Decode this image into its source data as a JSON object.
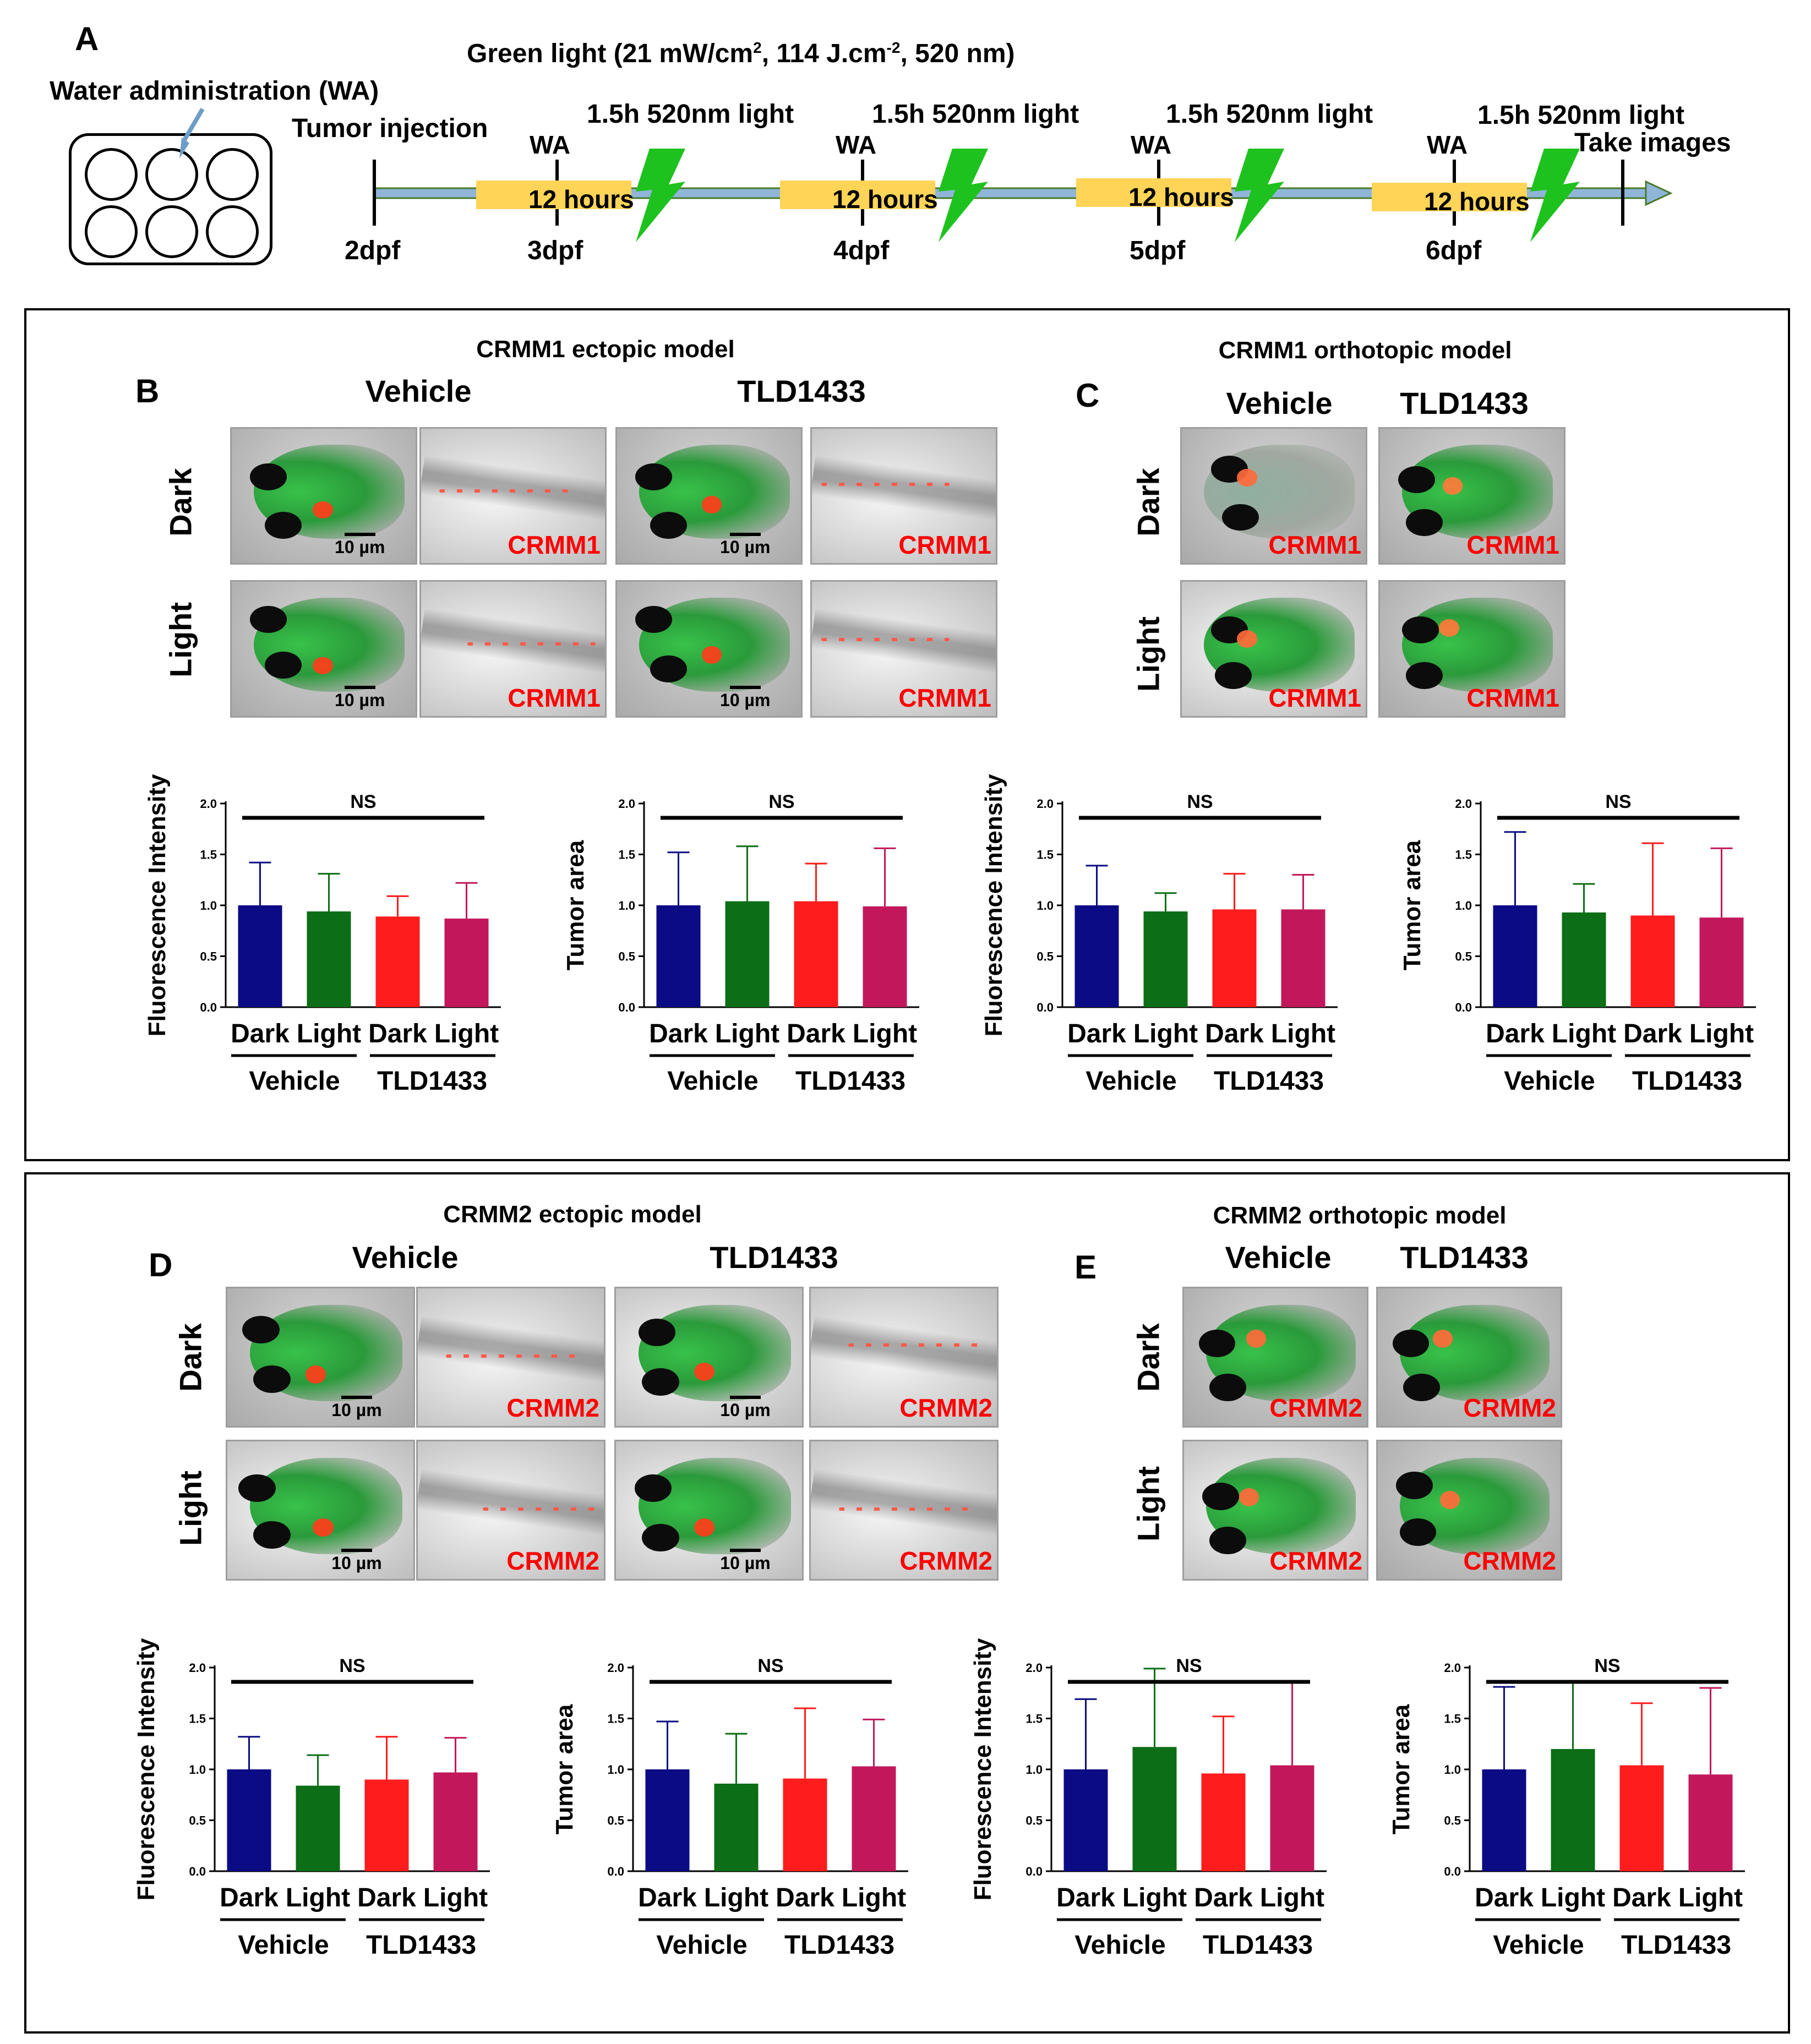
{
  "panel_a": {
    "letter": "A",
    "light_title": "Green light (21 mW/cm",
    "light_title_sup": "2",
    "light_title_mid": ", 114 J.cm",
    "light_title_sup2": "-2",
    "light_title_end": ", 520 nm)",
    "wa_label": "Water administration (WA)",
    "tumor_injection": "Tumor injection",
    "wa_short": "WA",
    "light_step": "1.5h 520nm light",
    "hours": "12 hours",
    "take_images": "Take images",
    "days": [
      "2dpf",
      "3dpf",
      "4dpf",
      "5dpf",
      "6dpf"
    ]
  },
  "panels": {
    "b": {
      "letter": "B",
      "title": "CRMM1 ectopic model",
      "cell": "CRMM1"
    },
    "c": {
      "letter": "C",
      "title": "CRMM1 orthotopic model",
      "cell": "CRMM1"
    },
    "d": {
      "letter": "D",
      "title": "CRMM2 ectopic model",
      "cell": "CRMM2"
    },
    "e": {
      "letter": "E",
      "title": "CRMM2 orthotopic model",
      "cell": "CRMM2"
    }
  },
  "labels": {
    "vehicle": "Vehicle",
    "tld": "TLD1433",
    "dark": "Dark",
    "light": "Light",
    "scale": "10 µm",
    "ns": "NS"
  },
  "colors": {
    "vehicle_dark": "#0b0b85",
    "vehicle_light": "#0c6e16",
    "tld_dark": "#ff1c1c",
    "tld_light": "#c2185b",
    "arrow_fill": "#8fb5d9",
    "hours_box": "#ffd457",
    "bolt": "#1ec21e"
  },
  "chart_data": [
    {
      "id": "b1",
      "type": "bar",
      "ylabel": "Fluorescence Intensity",
      "ylim": [
        0,
        2.0
      ],
      "yticks": [
        "0.0",
        "0.5",
        "1.0",
        "1.5",
        "2.0"
      ],
      "categories": [
        "Dark",
        "Light",
        "Dark",
        "Light"
      ],
      "groups": [
        "Vehicle",
        "TLD1433"
      ],
      "values": [
        1.0,
        0.94,
        0.89,
        0.87
      ],
      "errors": [
        0.42,
        0.37,
        0.2,
        0.35
      ],
      "annotation": "NS"
    },
    {
      "id": "b2",
      "type": "bar",
      "ylabel": "Tumor area",
      "ylim": [
        0,
        2.0
      ],
      "yticks": [
        "0.0",
        "0.5",
        "1.0",
        "1.5",
        "2.0"
      ],
      "categories": [
        "Dark",
        "Light",
        "Dark",
        "Light"
      ],
      "groups": [
        "Vehicle",
        "TLD1433"
      ],
      "values": [
        1.0,
        1.04,
        1.04,
        0.99
      ],
      "errors": [
        0.52,
        0.54,
        0.37,
        0.57
      ],
      "annotation": "NS"
    },
    {
      "id": "c1",
      "type": "bar",
      "ylabel": "Fluorescence Intensity",
      "ylim": [
        0,
        2.0
      ],
      "yticks": [
        "0.0",
        "0.5",
        "1.0",
        "1.5",
        "2.0"
      ],
      "categories": [
        "Dark",
        "Light",
        "Dark",
        "Light"
      ],
      "groups": [
        "Vehicle",
        "TLD1433"
      ],
      "values": [
        1.0,
        0.94,
        0.96,
        0.96
      ],
      "errors": [
        0.39,
        0.18,
        0.35,
        0.34
      ],
      "annotation": "NS"
    },
    {
      "id": "c2",
      "type": "bar",
      "ylabel": "Tumor area",
      "ylim": [
        0,
        2.0
      ],
      "yticks": [
        "0.0",
        "0.5",
        "1.0",
        "1.5",
        "2.0"
      ],
      "categories": [
        "Dark",
        "Light",
        "Dark",
        "Light"
      ],
      "groups": [
        "Vehicle",
        "TLD1433"
      ],
      "values": [
        1.0,
        0.93,
        0.9,
        0.88
      ],
      "errors": [
        0.72,
        0.28,
        0.71,
        0.68
      ],
      "annotation": "NS"
    },
    {
      "id": "d1",
      "type": "bar",
      "ylabel": "Fluorescence Intensity",
      "ylim": [
        0,
        2.0
      ],
      "yticks": [
        "0.0",
        "0.5",
        "1.0",
        "1.5",
        "2.0"
      ],
      "categories": [
        "Dark",
        "Light",
        "Dark",
        "Light"
      ],
      "groups": [
        "Vehicle",
        "TLD1433"
      ],
      "values": [
        1.0,
        0.84,
        0.9,
        0.97
      ],
      "errors": [
        0.32,
        0.3,
        0.42,
        0.34
      ],
      "annotation": "NS"
    },
    {
      "id": "d2",
      "type": "bar",
      "ylabel": "Tumor area",
      "ylim": [
        0,
        2.0
      ],
      "yticks": [
        "0.0",
        "0.5",
        "1.0",
        "1.5",
        "2.0"
      ],
      "categories": [
        "Dark",
        "Light",
        "Dark",
        "Light"
      ],
      "groups": [
        "Vehicle",
        "TLD1433"
      ],
      "values": [
        1.0,
        0.86,
        0.91,
        1.03
      ],
      "errors": [
        0.47,
        0.49,
        0.69,
        0.46
      ],
      "annotation": "NS"
    },
    {
      "id": "e1",
      "type": "bar",
      "ylabel": "Fluorescence Intensity",
      "ylim": [
        0,
        2.0
      ],
      "yticks": [
        "0.0",
        "0.5",
        "1.0",
        "1.5",
        "2.0"
      ],
      "categories": [
        "Dark",
        "Light",
        "Dark",
        "Light"
      ],
      "groups": [
        "Vehicle",
        "TLD1433"
      ],
      "values": [
        1.0,
        1.22,
        0.96,
        1.04
      ],
      "errors": [
        0.69,
        0.77,
        0.56,
        0.83
      ],
      "annotation": "NS"
    },
    {
      "id": "e2",
      "type": "bar",
      "ylabel": "Tumor area",
      "ylim": [
        0,
        2.0
      ],
      "yticks": [
        "0.0",
        "0.5",
        "1.0",
        "1.5",
        "2.0"
      ],
      "categories": [
        "Dark",
        "Light",
        "Dark",
        "Light"
      ],
      "groups": [
        "Vehicle",
        "TLD1433"
      ],
      "values": [
        1.0,
        1.2,
        1.04,
        0.95
      ],
      "errors": [
        0.81,
        0.67,
        0.61,
        0.85
      ],
      "annotation": "NS"
    }
  ]
}
